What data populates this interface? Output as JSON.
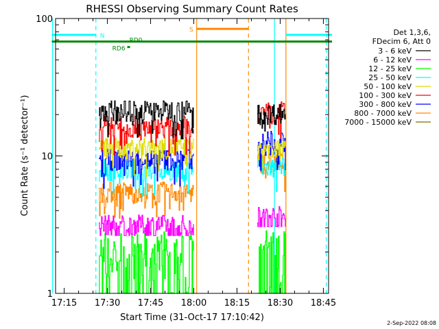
{
  "chart_data": {
    "type": "line",
    "title": "RHESSI Observing Summary Count Rates",
    "xlabel": "Start Time (31-Oct-17 17:10:42)",
    "ylabel": "Count Rate (s⁻¹ detector⁻¹)",
    "yscale": "log",
    "ylim": [
      1,
      100
    ],
    "xlim_minutes": [
      17.2,
      18.78
    ],
    "x_ticks": [
      "17:15",
      "17:30",
      "17:45",
      "18:00",
      "18:15",
      "18:30",
      "18:45"
    ],
    "y_ticks": [
      "1",
      "10",
      "100"
    ],
    "legend_header": [
      "Det 1,3,6,",
      "FDecim 6, Att 0"
    ],
    "legend_position": "right",
    "segments": [
      {
        "start": "17:27",
        "end": "18:00"
      },
      {
        "start": "18:22",
        "end": "18:32"
      }
    ],
    "series": [
      {
        "name": "3 - 6 keV",
        "color": "#000000",
        "seg1": 21.5,
        "seg2": 20.5
      },
      {
        "name": "6 - 12 keV",
        "color": "#ff00ff",
        "seg1": 3.1,
        "seg2": 3.6
      },
      {
        "name": "12 - 25 keV",
        "color": "#00ff00",
        "seg1": 2.2,
        "seg2": 2.4
      },
      {
        "name": "25 - 50 keV",
        "color": "#00ffff",
        "seg1": 8.0,
        "seg2": 8.3
      },
      {
        "name": "50 - 100 keV",
        "color": "#dddd00",
        "seg1": 11.5,
        "seg2": 11.2
      },
      {
        "name": "100 - 300 keV",
        "color": "#ff0000",
        "seg1": 16.5,
        "seg2": 21.0
      },
      {
        "name": "300 - 800 keV",
        "color": "#0000ff",
        "seg1": 9.5,
        "seg2": 13.0
      },
      {
        "name": "800 - 7000 keV",
        "color": "#ff8800",
        "seg1": 5.5,
        "seg2": 9.0
      },
      {
        "name": "7000 - 15000 keV",
        "color": "#886600",
        "seg1": null,
        "seg2": null
      }
    ],
    "annotations": [
      {
        "label": "N",
        "color": "#00ffff",
        "level": 76
      },
      {
        "label": "S",
        "color": "#ff8800",
        "level": 84
      },
      {
        "label": "RD0",
        "color": "#008800",
        "level": 68
      },
      {
        "label": "RD6",
        "color": "#008800",
        "level": 62
      }
    ],
    "flag_intervals": {
      "night": [
        [
          "17:10:42",
          "17:26"
        ],
        [
          "18:32",
          "18:48"
        ]
      ],
      "saa": [
        [
          "18:01",
          "18:19"
        ]
      ],
      "rd0_line": [
        [
          "17:10:42",
          "18:48"
        ]
      ]
    },
    "vertical_markers": [
      {
        "time": "17:10:42",
        "color": "#00ffff",
        "style": "solid"
      },
      {
        "time": "17:26",
        "color": "#00ffff",
        "style": "dashed"
      },
      {
        "time": "18:01",
        "color": "#ff8800",
        "style": "solid"
      },
      {
        "time": "18:19",
        "color": "#ff8800",
        "style": "dashed"
      },
      {
        "time": "18:28",
        "color": "#00ffff",
        "style": "solid"
      },
      {
        "time": "18:32",
        "color": "#ff8800",
        "style": "solid"
      },
      {
        "time": "18:46",
        "color": "#00ffff",
        "style": "dashed"
      }
    ],
    "grid": false
  },
  "footer": {
    "date_stamp": "2-Sep-2022 08:08"
  }
}
